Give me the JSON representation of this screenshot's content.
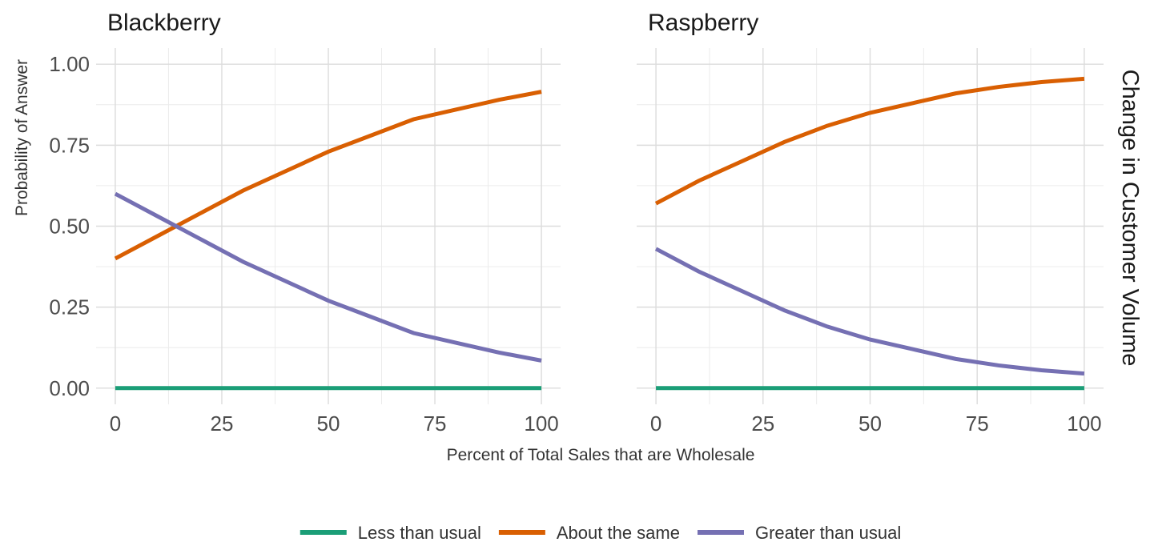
{
  "chart_data": {
    "type": "line",
    "ylabel": "Probability of Answer",
    "xlabel": "Percent of Total Sales that are Wholesale",
    "facet_strip_label": "Change in Customer Volume",
    "xlim": [
      0,
      100
    ],
    "ylim": [
      0,
      1
    ],
    "x_ticks": [
      "0",
      "25",
      "50",
      "75",
      "100"
    ],
    "y_ticks": [
      "0.00",
      "0.25",
      "0.50",
      "0.75",
      "1.00"
    ],
    "grid": true,
    "legend": {
      "position": "bottom",
      "entries": [
        {
          "name": "Less than usual",
          "color": "#1b9e77"
        },
        {
          "name": "About the same",
          "color": "#d95f02"
        },
        {
          "name": "Greater than usual",
          "color": "#7570b3"
        }
      ]
    },
    "panels": [
      {
        "title": "Blackberry",
        "x": [
          0,
          10,
          20,
          30,
          40,
          50,
          60,
          70,
          80,
          90,
          100
        ],
        "series": [
          {
            "name": "Less than usual",
            "color": "#1b9e77",
            "values": [
              0.0,
              0.0,
              0.0,
              0.0,
              0.0,
              0.0,
              0.0,
              0.0,
              0.0,
              0.0,
              0.0
            ]
          },
          {
            "name": "About the same",
            "color": "#d95f02",
            "values": [
              0.4,
              0.47,
              0.54,
              0.61,
              0.67,
              0.73,
              0.78,
              0.83,
              0.86,
              0.89,
              0.915
            ]
          },
          {
            "name": "Greater than usual",
            "color": "#7570b3",
            "values": [
              0.6,
              0.53,
              0.46,
              0.39,
              0.33,
              0.27,
              0.22,
              0.17,
              0.14,
              0.11,
              0.085
            ]
          }
        ]
      },
      {
        "title": "Raspberry",
        "x": [
          0,
          10,
          20,
          30,
          40,
          50,
          60,
          70,
          80,
          90,
          100
        ],
        "series": [
          {
            "name": "Less than usual",
            "color": "#1b9e77",
            "values": [
              0.0,
              0.0,
              0.0,
              0.0,
              0.0,
              0.0,
              0.0,
              0.0,
              0.0,
              0.0,
              0.0
            ]
          },
          {
            "name": "About the same",
            "color": "#d95f02",
            "values": [
              0.57,
              0.64,
              0.7,
              0.76,
              0.81,
              0.85,
              0.88,
              0.91,
              0.93,
              0.945,
              0.955
            ]
          },
          {
            "name": "Greater than usual",
            "color": "#7570b3",
            "values": [
              0.43,
              0.36,
              0.3,
              0.24,
              0.19,
              0.15,
              0.12,
              0.09,
              0.07,
              0.055,
              0.045
            ]
          }
        ]
      }
    ]
  }
}
